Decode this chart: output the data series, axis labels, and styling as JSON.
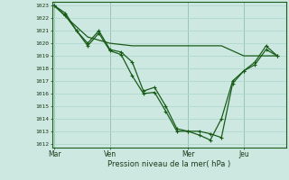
{
  "background_color": "#cce8e0",
  "grid_color": "#b0d8d0",
  "line_color": "#1a5c1a",
  "marker_color": "#1a5c1a",
  "xlabel": "Pression niveau de la mer( hPa )",
  "ylabel_min": 1012,
  "ylabel_max": 1023,
  "series": [
    {
      "x": [
        0,
        0.5,
        1.0,
        1.5,
        2.0,
        2.5,
        3.0,
        3.5,
        4.0,
        4.5,
        5.0,
        5.5,
        6.0,
        6.5,
        7.0,
        7.5,
        8.0,
        8.5,
        9.0,
        9.5,
        10.0
      ],
      "y": [
        1023.0,
        1022.4,
        1021.0,
        1020.0,
        1021.0,
        1019.5,
        1019.3,
        1018.5,
        1016.2,
        1016.5,
        1015.0,
        1013.2,
        1013.0,
        1013.0,
        1012.8,
        1012.5,
        1016.8,
        1017.8,
        1018.3,
        1019.5,
        1019.0
      ],
      "marker": "P",
      "markersize": 2.5,
      "linewidth": 0.9
    },
    {
      "x": [
        0,
        0.5,
        1.0,
        1.5,
        2.0,
        2.5,
        3.0,
        3.5,
        4.0,
        4.5,
        5.0,
        5.5,
        6.0,
        6.5,
        7.0,
        7.5,
        8.0,
        8.5,
        9.0,
        9.5,
        10.0
      ],
      "y": [
        1023.0,
        1022.2,
        1021.0,
        1019.8,
        1020.8,
        1019.4,
        1019.1,
        1017.4,
        1016.0,
        1016.1,
        1014.6,
        1013.0,
        1013.0,
        1012.7,
        1012.3,
        1014.0,
        1017.0,
        1017.8,
        1018.5,
        1019.8,
        1019.0
      ],
      "marker": "P",
      "markersize": 2.5,
      "linewidth": 0.9
    },
    {
      "x": [
        0,
        0.7,
        1.5,
        2.5,
        3.5,
        4.5,
        5.5,
        6.5,
        7.5,
        8.5,
        9.5,
        10.0
      ],
      "y": [
        1023.0,
        1021.8,
        1020.5,
        1020.0,
        1019.8,
        1019.8,
        1019.8,
        1019.8,
        1019.8,
        1019.0,
        1019.0,
        1019.0
      ],
      "marker": null,
      "markersize": 0,
      "linewidth": 0.9
    }
  ],
  "xtick_positions": [
    0.0,
    2.5,
    6.0,
    8.5
  ],
  "xtick_labels": [
    "Mar",
    "Ven",
    "Mer",
    "Jeu"
  ],
  "vline_positions": [
    0.0,
    2.5,
    6.0,
    8.5
  ],
  "figsize": [
    3.2,
    2.0
  ],
  "dpi": 100
}
